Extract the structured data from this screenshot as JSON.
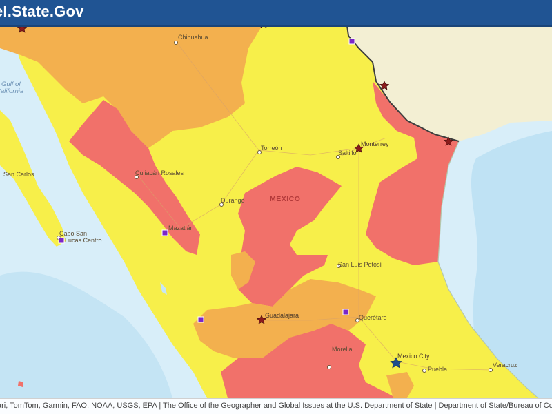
{
  "header": {
    "title": "el.State.Gov"
  },
  "map": {
    "country_label": "MEXICO",
    "water_label_lines": [
      "Gulf of",
      "California"
    ],
    "cities": {
      "chihuahua": "Chihuahua",
      "torreon": "Torreón",
      "monterrey": "Monterrey",
      "saltillo": "Saltillo",
      "culiacan": "Culiacán Rosales",
      "durango": "Durango",
      "mazatlan": "Mazatlán",
      "san_carlos": "San Carlos",
      "cabo_line1": "Cabo San",
      "cabo_line2": "Lucas Centro",
      "san_luis_potosi": "San Luis Potosí",
      "guadalajara": "Guadalajara",
      "queretaro": "Querétaro",
      "morelia": "Morelia",
      "mexico_city": "Mexico City",
      "puebla": "Puebla",
      "veracruz": "Veracruz"
    },
    "advisory_colors": {
      "do_not_travel": "#f1716a",
      "reconsider_travel": "#f3b04e",
      "exercise_increased_caution": "#f7ef4a",
      "us_territory": "#f3efd3",
      "ocean": "#d8eef9"
    },
    "marker_colors": {
      "consulate_star": "#8b1c1c",
      "embassy_star": "#1f4e8c",
      "agency_square": "#7b27c7"
    }
  },
  "attribution": {
    "text": "ari, TomTom, Garmin, FAO, NOAA, USGS, EPA | The Office of the Geographer and Global Issues at the U.S. Department of State | Department of State/Bureau of Consular Affairs/Overseas C"
  }
}
